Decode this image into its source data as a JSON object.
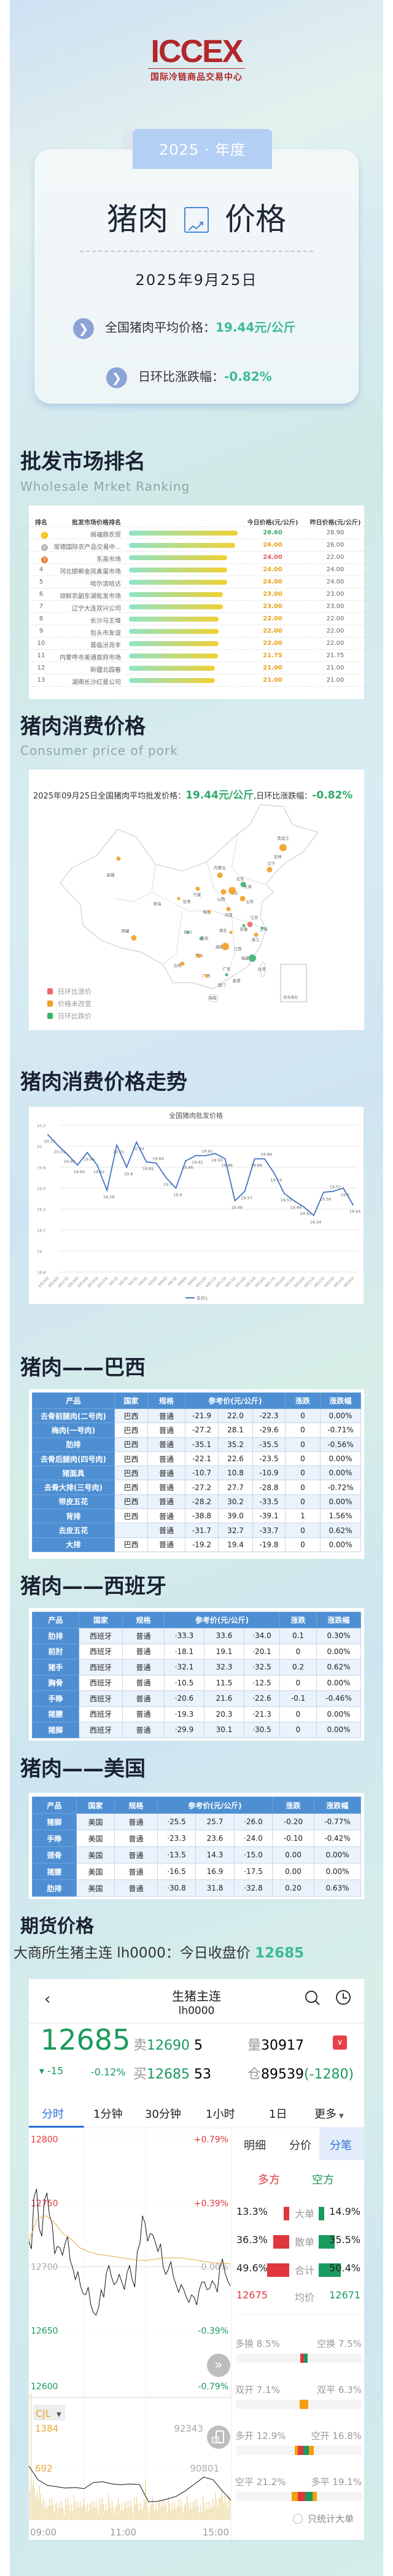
{
  "logo": {
    "text": "ICCEX",
    "subtitle": "国际冷链商品交易中心"
  },
  "hero": {
    "year_tab": "2025 · 年度",
    "title_left": "猪肉",
    "title_right": "价格",
    "title_icon": "trend-chart-icon",
    "date": "2025年9月25日",
    "avg_label": "全国猪肉平均价格：",
    "avg_value": "19.44元/公斤",
    "change_label": "日环比涨跌幅：",
    "change_value": "-0.82%",
    "accent": "#3dbb94"
  },
  "ranking": {
    "title": "批发市场排名",
    "subtitle": "Wholesale Mrket Ranking",
    "headers": [
      "排名",
      "批发市场价格排名",
      "今日价格(元/公斤)",
      "昨日价格(元/公斤)"
    ],
    "rows": [
      {
        "rank": "1",
        "market": "闽福鼎农贸",
        "today": "26.60",
        "yesterday": "28.90",
        "today_color": "#3aaa6a"
      },
      {
        "rank": "2",
        "market": "常德国际农产品交易中...",
        "today": "26.00",
        "yesterday": "26.00",
        "today_color": "#e8a317"
      },
      {
        "rank": "3",
        "market": "东高市场",
        "today": "24.00",
        "yesterday": "22.00",
        "today_color": "#e06060"
      },
      {
        "rank": "4",
        "market": "河北邯郸金凤禽蛋市场",
        "today": "24.00",
        "yesterday": "24.00",
        "today_color": "#e8a317"
      },
      {
        "rank": "5",
        "market": "哈尔滨哈达",
        "today": "24.00",
        "yesterday": "24.00",
        "today_color": "#e8a317"
      },
      {
        "rank": "6",
        "market": "领鲜农副东湖批发市场",
        "today": "23.00",
        "yesterday": "23.00",
        "today_color": "#e8a317"
      },
      {
        "rank": "7",
        "market": "辽宁大连双兴公司",
        "today": "23.00",
        "yesterday": "23.00",
        "today_color": "#e8a317"
      },
      {
        "rank": "8",
        "market": "长沙马王堆",
        "today": "22.00",
        "yesterday": "22.00",
        "today_color": "#e8a317"
      },
      {
        "rank": "9",
        "market": "包头市友谊",
        "today": "22.00",
        "yesterday": "22.00",
        "today_color": "#e8a317"
      },
      {
        "rank": "10",
        "market": "晋临汾尧丰",
        "today": "22.00",
        "yesterday": "22.00",
        "today_color": "#e8a317"
      },
      {
        "rank": "11",
        "market": "内蒙呼市美通首府市场",
        "today": "21.75",
        "yesterday": "21.75",
        "today_color": "#e8a317"
      },
      {
        "rank": "12",
        "market": "新疆北园春",
        "today": "21.00",
        "yesterday": "21.00",
        "today_color": "#e8a317"
      },
      {
        "rank": "13",
        "market": "湖南长沙红星公司",
        "today": "21.00",
        "yesterday": "21.00",
        "today_color": "#e8a317"
      }
    ]
  },
  "consumer": {
    "title": "猪肉消费价格",
    "subtitle": "Consumer price of pork",
    "map_heading_prefix": "2025年09月25日全国猪肉平均批发价格：",
    "map_heading_price": "19.44元/公斤",
    "map_heading_mid": ",日环比涨跌幅：",
    "map_heading_change": "-0.82%",
    "legend": [
      {
        "label": "日环比涨价",
        "color": "#ee6666"
      },
      {
        "label": "价格未改变",
        "color": "#f0a020"
      },
      {
        "label": "日环比跌价",
        "color": "#3cb371"
      }
    ],
    "provinces": [
      {
        "name": "黑龙江",
        "status": "flat",
        "size": "l"
      },
      {
        "name": "吉林"
      },
      {
        "name": "辽宁",
        "status": "flat",
        "size": "m"
      },
      {
        "name": "内蒙古",
        "status": "flat",
        "size": "m"
      },
      {
        "name": "北京",
        "status": "fall",
        "size": "m"
      },
      {
        "name": "天津"
      },
      {
        "name": "河北",
        "status": "flat",
        "size": "l"
      },
      {
        "name": "山西",
        "status": "flat",
        "size": "m"
      },
      {
        "name": "山东",
        "status": "flat",
        "size": "m"
      },
      {
        "name": "宁夏",
        "status": "flat",
        "size": "s"
      },
      {
        "name": "甘肃",
        "status": "flat",
        "size": "xs"
      },
      {
        "name": "青海"
      },
      {
        "name": "新疆",
        "status": "flat",
        "size": "s"
      },
      {
        "name": "西藏",
        "status": "flat",
        "size": "m"
      },
      {
        "name": "陕西",
        "status": "flat",
        "size": "xs"
      },
      {
        "name": "河南",
        "status": "flat",
        "size": "s"
      },
      {
        "name": "江苏",
        "status": "rise",
        "size": "m"
      },
      {
        "name": "安徽",
        "status": "fall",
        "size": "xs"
      },
      {
        "name": "上海",
        "status": "fall",
        "size": "xs"
      },
      {
        "name": "湖北",
        "status": "flat",
        "size": "xs"
      },
      {
        "name": "浙江",
        "status": "flat",
        "size": "s"
      },
      {
        "name": "四川",
        "status": "fall",
        "size": "xs"
      },
      {
        "name": "重庆",
        "status": "fall",
        "size": "xs"
      },
      {
        "name": "湖南",
        "status": "flat",
        "size": "l"
      },
      {
        "name": "江西"
      },
      {
        "name": "福建",
        "status": "fall",
        "size": "l"
      },
      {
        "name": "贵州",
        "status": "flat",
        "size": "s"
      },
      {
        "name": "云南",
        "status": "flat",
        "size": "s"
      },
      {
        "name": "广东",
        "status": "fall",
        "size": "xs"
      },
      {
        "name": "广西",
        "status": "flat",
        "size": "xs"
      },
      {
        "name": "香港"
      },
      {
        "name": "澳门"
      },
      {
        "name": "台湾"
      },
      {
        "name": "海南"
      }
    ],
    "inset_label": "南海诸岛"
  },
  "trend": {
    "title": "猪肉消费价格走势"
  },
  "chart_data": {
    "type": "line",
    "title": "全国猪肉批发价格",
    "ylim": [
      18.8,
      20.2
    ],
    "yticks": [
      "20.2",
      "20",
      "19.8",
      "19.6",
      "19.4",
      "19.2",
      "19",
      "18.8"
    ],
    "grid": true,
    "legend_position": "bottom",
    "categories": [
      "8月25日",
      "8月26日",
      "8月27日",
      "8月28日",
      "8月29日",
      "8月30日",
      "8月31日",
      "9月1日",
      "9月2日",
      "9月3日",
      "9月4日",
      "9月5日",
      "9月6日",
      "9月7日",
      "9月8日",
      "9月9日",
      "9月10日",
      "9月11日",
      "9月12日",
      "9月13日",
      "9月14日",
      "9月15日",
      "9月16日",
      "9月17日",
      "9月18日",
      "9月19日",
      "9月20日",
      "9月21日",
      "9月22日",
      "9月23日",
      "9月24日",
      "9月25日"
    ],
    "series": [
      {
        "name": "系列1",
        "color": "#4472c4",
        "values": [
          20.11,
          20.01,
          19.92,
          19.82,
          19.94,
          19.82,
          19.58,
          20.01,
          19.8,
          20.04,
          19.85,
          19.84,
          19.7,
          19.6,
          19.86,
          19.91,
          19.91,
          19.93,
          19.88,
          19.48,
          19.57,
          19.88,
          19.88,
          19.74,
          19.55,
          19.48,
          19.42,
          19.34,
          19.56,
          19.57,
          19.6,
          19.44
        ]
      }
    ]
  },
  "price_tables": {
    "headers": [
      "产品",
      "国家",
      "规格",
      "参考价(元/公斤)",
      "涨跌",
      "涨跌幅"
    ],
    "brazil": {
      "title": "猪肉——巴西",
      "rows": [
        [
          "去骨前腿肉(二号肉)",
          "巴西",
          "普通",
          "-21.9",
          "22.0",
          "-22.3",
          "0",
          "0.00%"
        ],
        [
          "梅肉(一号肉)",
          "巴西",
          "普通",
          "-27.2",
          "28.1",
          "-29.6",
          "0",
          "-0.71%"
        ],
        [
          "肋排",
          "巴西",
          "普通",
          "-35.1",
          "35.2",
          "-35.5",
          "0",
          "-0.56%"
        ],
        [
          "去骨后腿肉(四号肉)",
          "巴西",
          "普通",
          "-22.1",
          "22.6",
          "-23.5",
          "0",
          "0.00%"
        ],
        [
          "猪面具",
          "巴西",
          "普通",
          "-10.7",
          "10.8",
          "-10.9",
          "0",
          "0.00%"
        ],
        [
          "去骨大排(三号肉)",
          "巴西",
          "普通",
          "-27.2",
          "27.7",
          "-28.8",
          "0",
          "-0.72%"
        ],
        [
          "带皮五花",
          "巴西",
          "普通",
          "-28.2",
          "30.2",
          "-33.5",
          "0",
          "0.00%"
        ],
        [
          "背排",
          "巴西",
          "普通",
          "-38.8",
          "39.0",
          "-39.1",
          "1",
          "1.56%"
        ],
        [
          "去皮五花",
          "",
          "普通",
          "-31.7",
          "32.7",
          "-33.7",
          "0",
          "0.62%"
        ],
        [
          "大排",
          "巴西",
          "普通",
          "-19.2",
          "19.4",
          "-19.8",
          "0",
          "0.00%"
        ]
      ]
    },
    "spain": {
      "title": "猪肉——西班牙",
      "rows": [
        [
          "肋排",
          "西班牙",
          "普通",
          "·33.3",
          "33.6",
          "·34.0",
          "0.1",
          "0.30%"
        ],
        [
          "前肘",
          "西班牙",
          "普通",
          "·18.1",
          "19.1",
          "·20.1",
          "0",
          "0.00%"
        ],
        [
          "猪手",
          "西班牙",
          "普通",
          "·32.1",
          "32.3",
          "·32.5",
          "0.2",
          "0.62%"
        ],
        [
          "胸骨",
          "西班牙",
          "普通",
          "·10.5",
          "11.5",
          "·12.5",
          "0",
          "0.00%"
        ],
        [
          "手睁",
          "西班牙",
          "普通",
          "·20.6",
          "21.6",
          "·22.6",
          "-0.1",
          "-0.46%"
        ],
        [
          "猪腰",
          "西班牙",
          "普通",
          "·19.3",
          "20.3",
          "·21.3",
          "0",
          "0.00%"
        ],
        [
          "猪脚",
          "西班牙",
          "普通",
          "·29.9",
          "30.1",
          "·30.5",
          "0",
          "0.00%"
        ]
      ]
    },
    "usa": {
      "title": "猪肉——美国",
      "rows": [
        [
          "猪脚",
          "美国",
          "普通",
          "·25.5",
          "25.7",
          "·26.0",
          "-0.20",
          "-0.77%"
        ],
        [
          "手睁",
          "美国",
          "普通",
          "·23.3",
          "23.6",
          "·24.0",
          "-0.10",
          "-0.42%"
        ],
        [
          "颈骨",
          "美国",
          "普通",
          "·13.5",
          "14.3",
          "·15.0",
          "0.00",
          "0.00%"
        ],
        [
          "猪腰",
          "美国",
          "普通",
          "·16.5",
          "16.9",
          "·17.5",
          "0.00",
          "0.00%"
        ],
        [
          "肋排",
          "美国",
          "普通",
          "·30.8",
          "31.8",
          "·32.8",
          "0.20",
          "0.63%"
        ]
      ]
    }
  },
  "futures": {
    "title": "期货价格",
    "subtitle_prefix": "大商所生猪主连 lh0000：今日收盘价 ",
    "close": "12685",
    "app": {
      "name": "生猪主连",
      "code": "lh0000",
      "price": "12685",
      "sell_label": "卖",
      "sell_price": "12690",
      "sell_qty": "5",
      "buy_label": "买",
      "buy_price": "12685",
      "buy_qty": "53",
      "vol_label": "量",
      "volume": "30917",
      "oi_label": "仓",
      "open_interest": "89539",
      "oi_change": "(-1280)",
      "change": "-15",
      "change_pct": "-0.12%",
      "tabs": [
        "分时",
        "1分钟",
        "30分钟",
        "1小时",
        "1日",
        "更多"
      ],
      "active_tab": "分时",
      "price_axis": [
        {
          "price": "12800",
          "pct": "+0.79%"
        },
        {
          "price": "12750",
          "pct": "+0.39%"
        },
        {
          "price": "12700",
          "pct": "0.00%"
        },
        {
          "price": "12650",
          "pct": "-0.39%"
        },
        {
          "price": "12600",
          "pct": "-0.79%"
        }
      ],
      "vol_indicator": "CJL",
      "vol_max": "1384",
      "vol_mid": "692",
      "oi_max": "92343",
      "oi_mid": "90801",
      "time_axis": [
        "09:00",
        "11:00",
        "15:00"
      ],
      "price_series": [
        12720,
        12755,
        12730,
        12752,
        12740,
        12710,
        12715,
        12718,
        12705,
        12690,
        12685,
        12678,
        12670,
        12662,
        12682,
        12695,
        12692,
        12688,
        12688,
        12695,
        12690,
        12712,
        12740,
        12720,
        12725,
        12712,
        12700,
        12698,
        12692,
        12680,
        12682,
        12672,
        12676,
        12682,
        12688,
        12683,
        12686,
        12700,
        12695,
        12685
      ],
      "avg_series": [
        12720,
        12738,
        12740,
        12735,
        12726,
        12722,
        12715,
        12712,
        12710,
        12709,
        12708,
        12707,
        12706,
        12705,
        12705,
        12706,
        12707,
        12707,
        12707,
        12706,
        12705,
        12704,
        12703,
        12703,
        12702
      ],
      "oi_series": [
        90801,
        90300,
        90100,
        90050,
        90000,
        90020,
        89980,
        90200,
        90230,
        90150,
        90120,
        90150,
        90130,
        89500,
        89520,
        89600,
        89700,
        89900,
        90150,
        90400,
        90300,
        89900,
        89539
      ],
      "side_tabs": [
        "明细",
        "分价",
        "分笔"
      ],
      "active_side_tab": "分笔",
      "long_label": "多方",
      "short_label": "空方",
      "flows": [
        {
          "label": "大单",
          "long": "13.3%",
          "short": "14.9%"
        },
        {
          "label": "散单",
          "long": "36.3%",
          "short": "35.5%"
        },
        {
          "label": "合计",
          "long": "49.6%",
          "short": "50.4%"
        }
      ],
      "avg_label": "均价",
      "avg_long": "12675",
      "avg_short": "12671",
      "stats": [
        {
          "a": "多换 8.5%",
          "b": "空换 7.5%"
        },
        {
          "a": "双开 7.1%",
          "b": "双平 6.3%"
        },
        {
          "a": "多开 12.9%",
          "b": "空开 16.8%"
        },
        {
          "a": "空平 21.2%",
          "b": "多平 19.1%"
        }
      ],
      "radio_label": "只统计大单",
      "colors": {
        "up": "#e0363d",
        "down": "#1a9a5c",
        "accent": "#2f6fd6",
        "avg": "#e8a73a"
      }
    }
  }
}
